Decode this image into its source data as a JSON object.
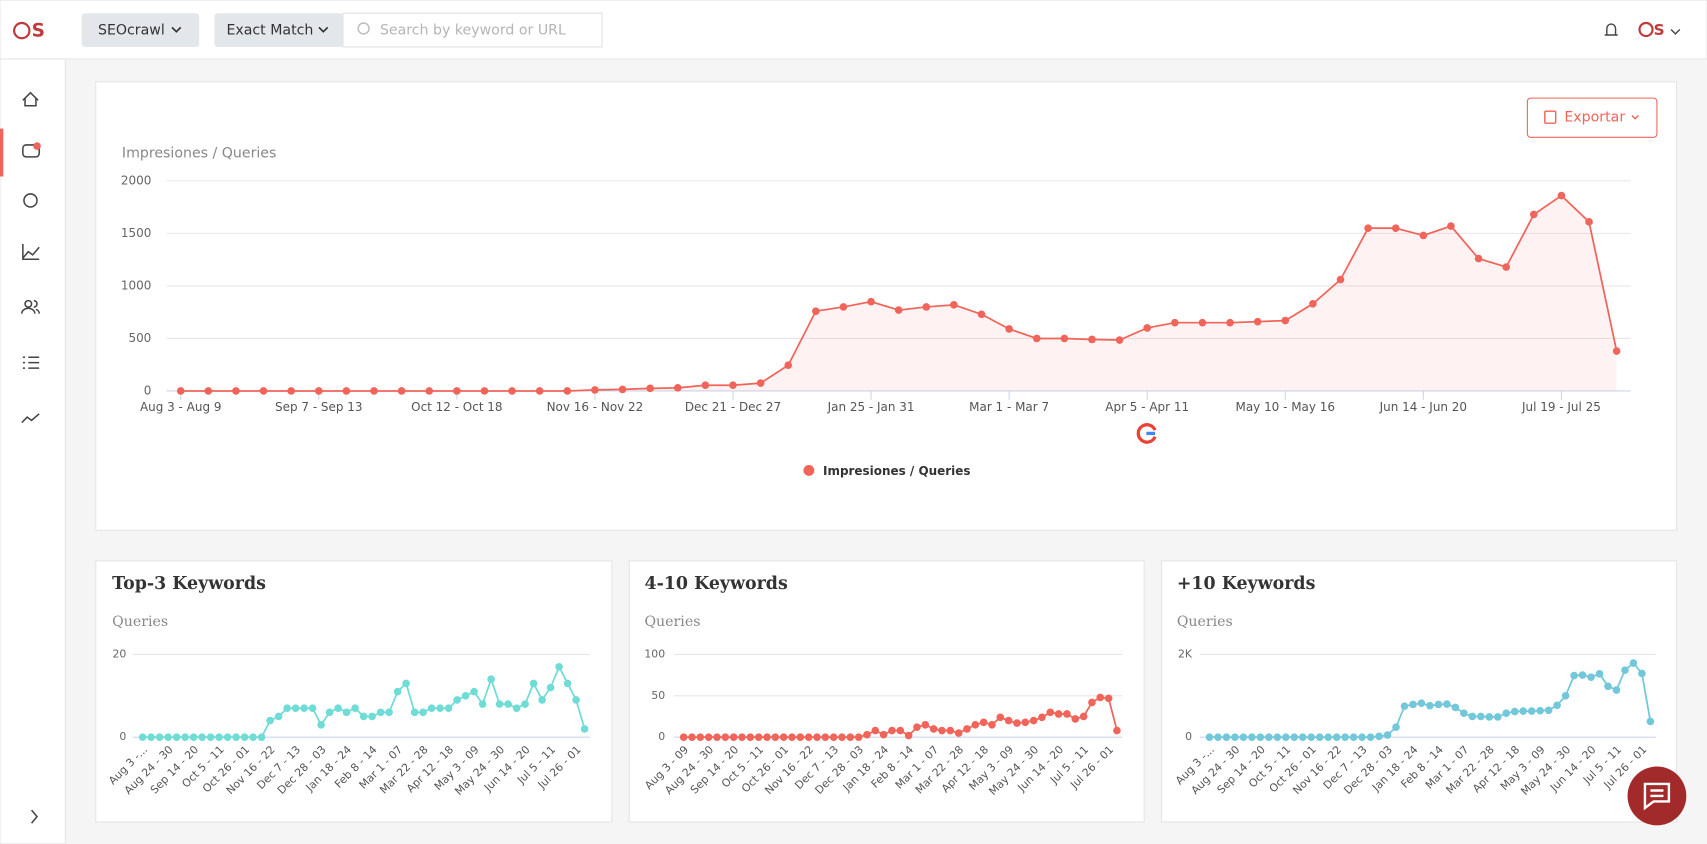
{
  "header": {
    "brand_dropdown": "SEOcrawl",
    "match_dropdown": "Exact Match",
    "search_placeholder": "Search by keyword or URL"
  },
  "export_label": "Exportar",
  "chart_data": [
    {
      "type": "line",
      "y_label": "Impresiones / Queries",
      "categories": [
        "Aug 3 - Aug 9",
        null,
        null,
        null,
        null,
        "Sep 7 - Sep 13",
        null,
        null,
        null,
        null,
        "Oct 12 - Oct 18",
        null,
        null,
        null,
        null,
        "Nov 16 - Nov 22",
        null,
        null,
        null,
        null,
        "Dec 21 - Dec 27",
        null,
        null,
        null,
        null,
        "Jan 25 - Jan 31",
        null,
        null,
        null,
        null,
        "Mar 1 - Mar 7",
        null,
        null,
        null,
        null,
        "Apr 5 - Apr 11",
        null,
        null,
        null,
        null,
        "May 10 - May 16",
        null,
        null,
        null,
        null,
        "Jun 14 - Jun 20",
        null,
        null,
        null,
        null,
        "Jul 19 - Jul 25",
        null,
        null
      ],
      "series": [
        {
          "name": "Impresiones / Queries",
          "color": "#f0645a",
          "values": [
            0,
            0,
            0,
            0,
            0,
            0,
            0,
            0,
            0,
            0,
            0,
            0,
            0,
            0,
            0,
            10,
            15,
            25,
            30,
            55,
            55,
            75,
            245,
            760,
            800,
            850,
            770,
            800,
            820,
            730,
            590,
            500,
            500,
            490,
            485,
            600,
            650,
            650,
            650,
            660,
            670,
            830,
            1060,
            1550,
            1550,
            1480,
            1570,
            1260,
            1180,
            1680,
            1860,
            1610,
            380
          ]
        }
      ],
      "ylim": [
        0,
        2000
      ],
      "yticks": [
        0,
        500,
        1000,
        1500,
        2000
      ],
      "grid": true,
      "area": true,
      "legend": "bottom"
    },
    {
      "type": "line",
      "title": "Top-3 Keywords",
      "y_label": "Queries",
      "categories": [
        "Aug 3 -...",
        null,
        null,
        "Aug 24 - 30",
        null,
        null,
        "Sep 14 - 20",
        null,
        null,
        "Oct 5 - 11",
        null,
        null,
        "Oct 26 - 01",
        null,
        null,
        "Nov 16 - 22",
        null,
        null,
        "Dec 7 - 13",
        null,
        null,
        "Dec 28 - 03",
        null,
        null,
        "Jan 18 - 24",
        null,
        null,
        "Feb 8 - 14",
        null,
        null,
        "Mar 1 - 07",
        null,
        null,
        "Mar 22 - 28",
        null,
        null,
        "Apr 12 - 18",
        null,
        null,
        "May 3 - 09",
        null,
        null,
        "May 24 - 30",
        null,
        null,
        "Jun 14 - 20",
        null,
        null,
        "Jul 5 - 11",
        null,
        null,
        "Jul 26 - 01",
        null
      ],
      "series": [
        {
          "color": "#6fdcd6",
          "values": [
            0,
            0,
            0,
            0,
            0,
            0,
            0,
            0,
            0,
            0,
            0,
            0,
            0,
            0,
            0,
            4,
            5,
            7,
            7,
            7,
            7,
            3,
            6,
            7,
            6,
            7,
            5,
            5,
            6,
            6,
            11,
            13,
            6,
            6,
            7,
            7,
            7,
            9,
            10,
            11,
            8,
            14,
            8,
            8,
            7,
            8,
            13,
            9,
            12,
            17,
            13,
            9,
            2
          ]
        }
      ],
      "ylim": [
        0,
        20
      ],
      "yticks": [
        0,
        20
      ],
      "grid": true
    },
    {
      "type": "line",
      "title": "4-10 Keywords",
      "y_label": "Queries",
      "categories": [
        "Aug 3 - 09",
        null,
        null,
        "Aug 24 - 30",
        null,
        null,
        "Sep 14 - 20",
        null,
        null,
        "Oct 5 - 11",
        null,
        null,
        "Oct 26 - 01",
        null,
        null,
        "Nov 16 - 22",
        null,
        null,
        "Dec 7 - 13",
        null,
        null,
        "Dec 28 - 03",
        null,
        null,
        "Jan 18 - 24",
        null,
        null,
        "Feb 8 - 14",
        null,
        null,
        "Mar 1 - 07",
        null,
        null,
        "Mar 22 - 28",
        null,
        null,
        "Apr 12 - 18",
        null,
        null,
        "May 3 - 09",
        null,
        null,
        "May 24 - 30",
        null,
        null,
        "Jun 14 - 20",
        null,
        null,
        "Jul 5 - 11",
        null,
        null,
        "Jul 26 - 01",
        null
      ],
      "series": [
        {
          "color": "#f0645a",
          "values": [
            0,
            0,
            0,
            0,
            0,
            0,
            0,
            0,
            0,
            0,
            0,
            0,
            0,
            0,
            0,
            0,
            0,
            0,
            0,
            0,
            0,
            0,
            3,
            8,
            3,
            8,
            8,
            2,
            12,
            15,
            10,
            8,
            8,
            5,
            10,
            15,
            18,
            15,
            24,
            20,
            17,
            18,
            20,
            24,
            30,
            28,
            28,
            22,
            25,
            42,
            48,
            47,
            8
          ]
        }
      ],
      "ylim": [
        0,
        100
      ],
      "yticks": [
        0,
        50,
        100
      ],
      "grid": true
    },
    {
      "type": "line",
      "title": "+10 Keywords",
      "y_label": "Queries",
      "categories": [
        "Aug 3 -...",
        null,
        null,
        "Aug 24 - 30",
        null,
        null,
        "Sep 14 - 20",
        null,
        null,
        "Oct 5 - 11",
        null,
        null,
        "Oct 26 - 01",
        null,
        null,
        "Nov 16 - 22",
        null,
        null,
        "Dec 7 - 13",
        null,
        null,
        "Dec 28 - 03",
        null,
        null,
        "Jan 18 - 24",
        null,
        null,
        "Feb 8 - 14",
        null,
        null,
        "Mar 1 - 07",
        null,
        null,
        "Mar 22 - 28",
        null,
        null,
        "Apr 12 - 18",
        null,
        null,
        "May 3 - 09",
        null,
        null,
        "May 24 - 30",
        null,
        null,
        "Jun 14 - 20",
        null,
        null,
        "Jul 5 - 11",
        null,
        null,
        "Jul 26 - 01",
        null
      ],
      "series": [
        {
          "color": "#72c8da",
          "values": [
            0,
            0,
            0,
            0,
            0,
            0,
            0,
            0,
            0,
            0,
            0,
            0,
            0,
            0,
            0,
            0,
            0,
            0,
            0,
            0,
            20,
            50,
            240,
            750,
            790,
            820,
            760,
            790,
            800,
            720,
            580,
            500,
            500,
            490,
            490,
            580,
            620,
            630,
            630,
            640,
            650,
            770,
            1000,
            1490,
            1500,
            1450,
            1530,
            1230,
            1140,
            1620,
            1790,
            1540,
            380
          ]
        }
      ],
      "ylim": [
        0,
        2000
      ],
      "yticks": [
        0,
        {
          "value": 2000,
          "label": "2K"
        }
      ],
      "grid": true
    }
  ]
}
